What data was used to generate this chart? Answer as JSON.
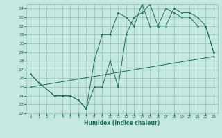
{
  "xlabel": "Humidex (Indice chaleur)",
  "bg_color": "#c5e8e0",
  "grid_color": "#8fbfb8",
  "line_color": "#1a6b5a",
  "xlim": [
    -0.5,
    23.5
  ],
  "ylim": [
    22,
    34.5
  ],
  "xticks": [
    0,
    1,
    2,
    3,
    4,
    5,
    6,
    7,
    8,
    9,
    10,
    11,
    12,
    13,
    14,
    15,
    16,
    17,
    18,
    19,
    20,
    21,
    22,
    23
  ],
  "yticks": [
    22,
    23,
    24,
    25,
    26,
    27,
    28,
    29,
    30,
    31,
    32,
    33,
    34
  ],
  "line1_x": [
    0,
    1,
    3,
    4,
    5,
    6,
    7,
    8,
    9,
    10,
    11,
    12,
    13,
    14,
    15,
    16,
    17,
    18,
    19,
    20,
    21,
    22,
    23
  ],
  "line1_y": [
    26.5,
    25.5,
    24.0,
    24.0,
    24.0,
    23.5,
    22.5,
    25.0,
    25.0,
    28.0,
    25.0,
    31.0,
    33.0,
    33.5,
    34.5,
    32.0,
    32.0,
    34.0,
    33.5,
    33.5,
    33.0,
    32.0,
    29.0
  ],
  "line2_x": [
    0,
    1,
    3,
    4,
    5,
    6,
    7,
    8,
    9,
    10,
    11,
    12,
    13,
    14,
    15,
    16,
    17,
    18,
    19,
    20,
    21,
    22,
    23
  ],
  "line2_y": [
    26.5,
    25.5,
    24.0,
    24.0,
    24.0,
    23.5,
    22.5,
    28.0,
    31.0,
    31.0,
    33.5,
    33.0,
    32.0,
    34.5,
    32.0,
    32.0,
    34.0,
    33.5,
    33.0,
    33.0,
    32.0,
    32.0,
    29.0
  ],
  "line3_x": [
    0,
    23
  ],
  "line3_y": [
    25.0,
    28.5
  ]
}
